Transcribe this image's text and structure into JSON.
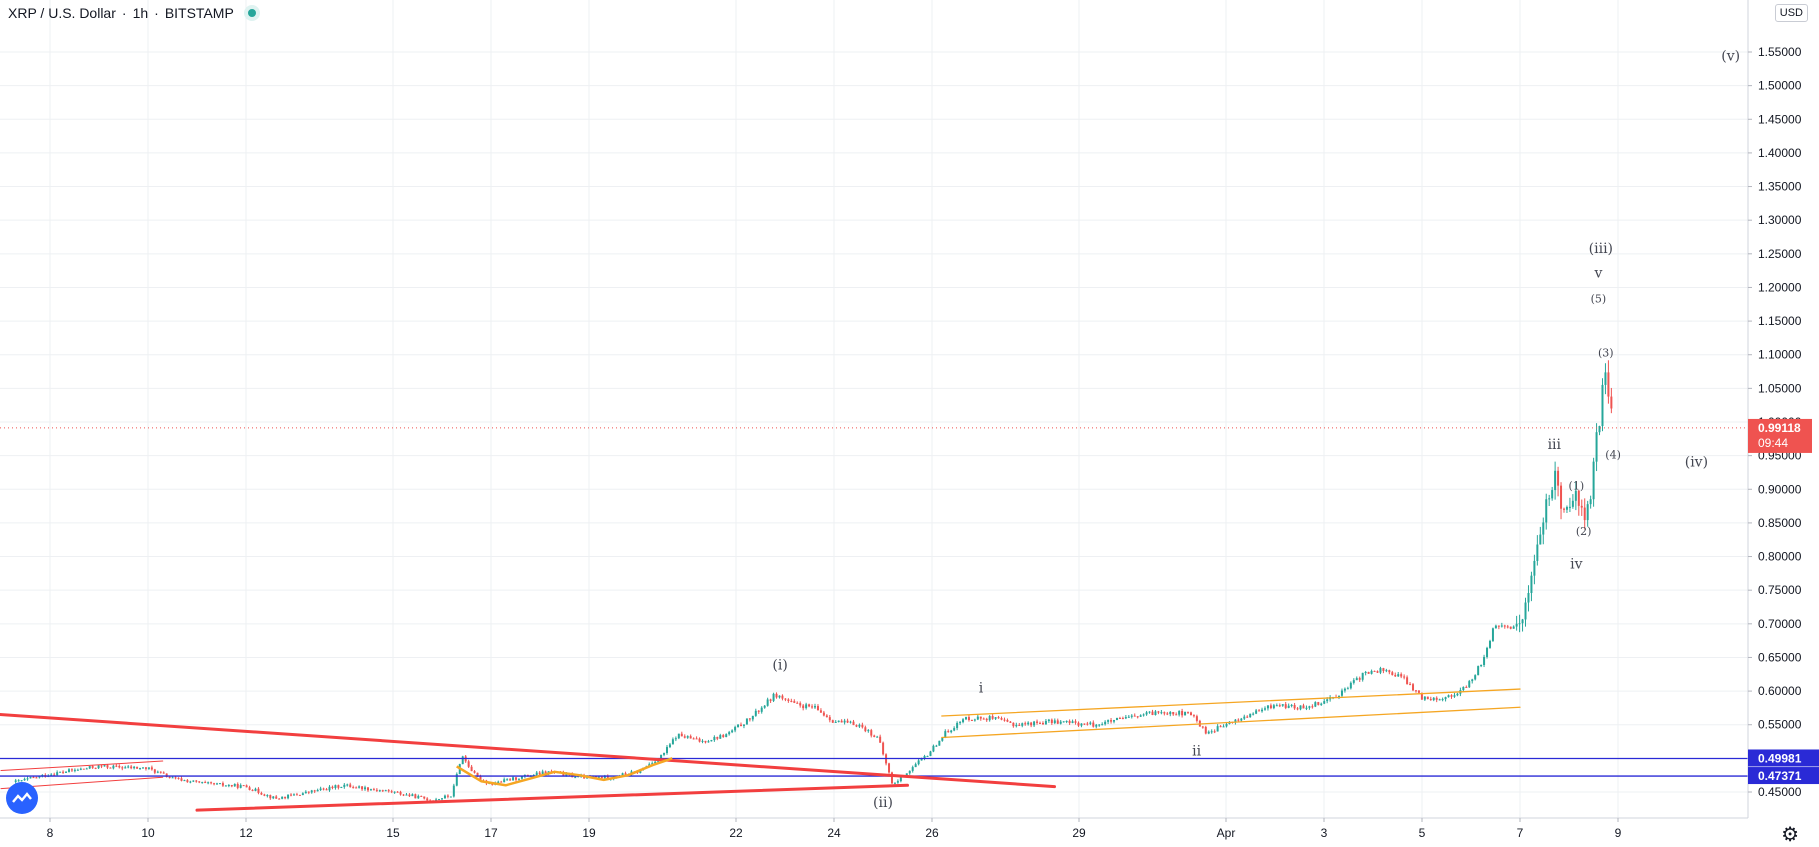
{
  "header": {
    "symbol": "XRP / U.S. Dollar",
    "interval": "1h",
    "exchange": "BITSTAMP",
    "scale_label": "USD"
  },
  "chart_data": {
    "type": "candlestick",
    "currency": "USD",
    "x_ticks": [
      "8",
      "10",
      "12",
      "15",
      "17",
      "19",
      "22",
      "24",
      "26",
      "29",
      "Apr",
      "3",
      "5",
      "7",
      "9"
    ],
    "y_ticks": [
      "0.45000",
      "0.50000",
      "0.55000",
      "0.60000",
      "0.65000",
      "0.70000",
      "0.75000",
      "0.80000",
      "0.85000",
      "0.90000",
      "0.95000",
      "1.00000",
      "1.05000",
      "1.10000",
      "1.15000",
      "1.20000",
      "1.25000",
      "1.30000",
      "1.35000",
      "1.40000",
      "1.45000",
      "1.50000",
      "1.55000"
    ],
    "ylim": [
      0.42,
      1.56
    ],
    "price_path": [
      {
        "day": 7.3,
        "price": 0.465
      },
      {
        "day": 8.1,
        "price": 0.478
      },
      {
        "day": 9.0,
        "price": 0.488
      },
      {
        "day": 10.0,
        "price": 0.485
      },
      {
        "day": 10.5,
        "price": 0.47
      },
      {
        "day": 11.2,
        "price": 0.462
      },
      {
        "day": 12.0,
        "price": 0.458
      },
      {
        "day": 12.6,
        "price": 0.44
      },
      {
        "day": 13.3,
        "price": 0.45
      },
      {
        "day": 14.0,
        "price": 0.46
      },
      {
        "day": 15.0,
        "price": 0.45
      },
      {
        "day": 15.8,
        "price": 0.438
      },
      {
        "day": 16.2,
        "price": 0.445
      },
      {
        "day": 16.4,
        "price": 0.505
      },
      {
        "day": 16.7,
        "price": 0.472
      },
      {
        "day": 17.0,
        "price": 0.462
      },
      {
        "day": 17.6,
        "price": 0.472
      },
      {
        "day": 18.2,
        "price": 0.48
      },
      {
        "day": 18.8,
        "price": 0.472
      },
      {
        "day": 19.4,
        "price": 0.472
      },
      {
        "day": 20.0,
        "price": 0.48
      },
      {
        "day": 20.5,
        "price": 0.505
      },
      {
        "day": 20.8,
        "price": 0.535
      },
      {
        "day": 21.3,
        "price": 0.525
      },
      {
        "day": 21.8,
        "price": 0.535
      },
      {
        "day": 22.3,
        "price": 0.56
      },
      {
        "day": 22.8,
        "price": 0.595
      },
      {
        "day": 23.2,
        "price": 0.58
      },
      {
        "day": 23.6,
        "price": 0.575
      },
      {
        "day": 24.0,
        "price": 0.555
      },
      {
        "day": 24.5,
        "price": 0.55
      },
      {
        "day": 24.9,
        "price": 0.53
      },
      {
        "day": 25.2,
        "price": 0.46
      },
      {
        "day": 25.5,
        "price": 0.48
      },
      {
        "day": 25.9,
        "price": 0.505
      },
      {
        "day": 26.3,
        "price": 0.54
      },
      {
        "day": 26.7,
        "price": 0.56
      },
      {
        "day": 27.2,
        "price": 0.56
      },
      {
        "day": 27.7,
        "price": 0.55
      },
      {
        "day": 28.5,
        "price": 0.555
      },
      {
        "day": 29.3,
        "price": 0.55
      },
      {
        "day": 30.0,
        "price": 0.56
      },
      {
        "day": 30.7,
        "price": 0.57
      },
      {
        "day": 31.3,
        "price": 0.565
      },
      {
        "day": 31.6,
        "price": 0.538
      },
      {
        "day": 32.0,
        "price": 0.55
      },
      {
        "day": 32.5,
        "price": 0.565
      },
      {
        "day": 33.0,
        "price": 0.58
      },
      {
        "day": 33.5,
        "price": 0.575
      },
      {
        "day": 34.0,
        "price": 0.585
      },
      {
        "day": 34.4,
        "price": 0.6
      },
      {
        "day": 34.8,
        "price": 0.625
      },
      {
        "day": 35.2,
        "price": 0.632
      },
      {
        "day": 35.6,
        "price": 0.62
      },
      {
        "day": 36.0,
        "price": 0.59
      },
      {
        "day": 36.5,
        "price": 0.59
      },
      {
        "day": 36.9,
        "price": 0.605
      },
      {
        "day": 37.2,
        "price": 0.64
      },
      {
        "day": 37.5,
        "price": 0.7
      },
      {
        "day": 37.8,
        "price": 0.69
      },
      {
        "day": 38.1,
        "price": 0.72
      },
      {
        "day": 38.3,
        "price": 0.8
      },
      {
        "day": 38.5,
        "price": 0.86
      },
      {
        "day": 38.7,
        "price": 0.92
      },
      {
        "day": 38.9,
        "price": 0.87
      },
      {
        "day": 39.1,
        "price": 0.9
      },
      {
        "day": 39.25,
        "price": 0.86
      },
      {
        "day": 39.4,
        "price": 0.87
      },
      {
        "day": 39.6,
        "price": 0.99
      },
      {
        "day": 39.75,
        "price": 1.08
      },
      {
        "day": 39.9,
        "price": 0.99
      }
    ],
    "horizontal_levels": [
      {
        "value": 0.49981,
        "label": "0.49981",
        "color": "#2a2ad6"
      },
      {
        "value": 0.47371,
        "label": "0.47371",
        "color": "#2a2ad6"
      }
    ],
    "current_price": {
      "value": 0.99118,
      "label": "0.99118",
      "countdown": "09:44",
      "color": "#ef5350"
    },
    "trend_lines": [
      {
        "name": "descending-trend-line",
        "color": "#f23f3f",
        "points": [
          [
            6.0,
            0.57
          ],
          [
            28.5,
            0.458
          ]
        ]
      },
      {
        "name": "ascending-trend-line",
        "color": "#f23f3f",
        "points": [
          [
            11.0,
            0.423
          ],
          [
            25.5,
            0.46
          ]
        ]
      },
      {
        "name": "early-channel-line",
        "color": "#f23f3f",
        "points": [
          [
            7.0,
            0.482
          ],
          [
            10.3,
            0.496
          ]
        ]
      },
      {
        "name": "early-channel-line-lower",
        "color": "#f23f3f",
        "points": [
          [
            7.0,
            0.455
          ],
          [
            10.3,
            0.472
          ]
        ]
      },
      {
        "name": "channel-upper-line",
        "color": "#f5a623",
        "points": [
          [
            26.2,
            0.563
          ],
          [
            38.0,
            0.603
          ]
        ]
      },
      {
        "name": "channel-lower-line",
        "color": "#f5a623",
        "points": [
          [
            26.2,
            0.531
          ],
          [
            38.0,
            0.576
          ]
        ]
      }
    ],
    "curve": {
      "name": "sine-curve",
      "color": "#f5a623",
      "points": [
        [
          16.3,
          0.488
        ],
        [
          16.8,
          0.466
        ],
        [
          17.3,
          0.46
        ],
        [
          17.8,
          0.47
        ],
        [
          18.3,
          0.48
        ],
        [
          18.8,
          0.475
        ],
        [
          19.3,
          0.468
        ],
        [
          19.8,
          0.475
        ],
        [
          20.3,
          0.49
        ],
        [
          20.7,
          0.5
        ]
      ]
    },
    "wave_labels": [
      {
        "text": "(i)",
        "day": 22.9,
        "price": 0.632,
        "size": 14
      },
      {
        "text": "(ii)",
        "day": 25.0,
        "price": 0.428,
        "size": 14
      },
      {
        "text": "i",
        "day": 27.0,
        "price": 0.598,
        "size": 14
      },
      {
        "text": "ii",
        "day": 31.4,
        "price": 0.504,
        "size": 14
      },
      {
        "text": "iii",
        "day": 38.7,
        "price": 0.96,
        "size": 14
      },
      {
        "text": "iv",
        "day": 39.15,
        "price": 0.782,
        "size": 14
      },
      {
        "text": "v",
        "day": 39.6,
        "price": 1.215,
        "size": 14
      },
      {
        "text": "(1)",
        "day": 39.15,
        "price": 0.9,
        "size": 11
      },
      {
        "text": "(2)",
        "day": 39.3,
        "price": 0.832,
        "size": 11
      },
      {
        "text": "(3)",
        "day": 39.75,
        "price": 1.097,
        "size": 11
      },
      {
        "text": "(4)",
        "day": 39.9,
        "price": 0.946,
        "size": 11
      },
      {
        "text": "(5)",
        "day": 39.6,
        "price": 1.178,
        "size": 11
      },
      {
        "text": "(iii)",
        "day": 39.65,
        "price": 1.251,
        "size": 14
      },
      {
        "text": "(iv)",
        "day": 41.6,
        "price": 0.934,
        "size": 14
      },
      {
        "text": "(v)",
        "day": 42.3,
        "price": 1.537,
        "size": 14
      }
    ]
  }
}
